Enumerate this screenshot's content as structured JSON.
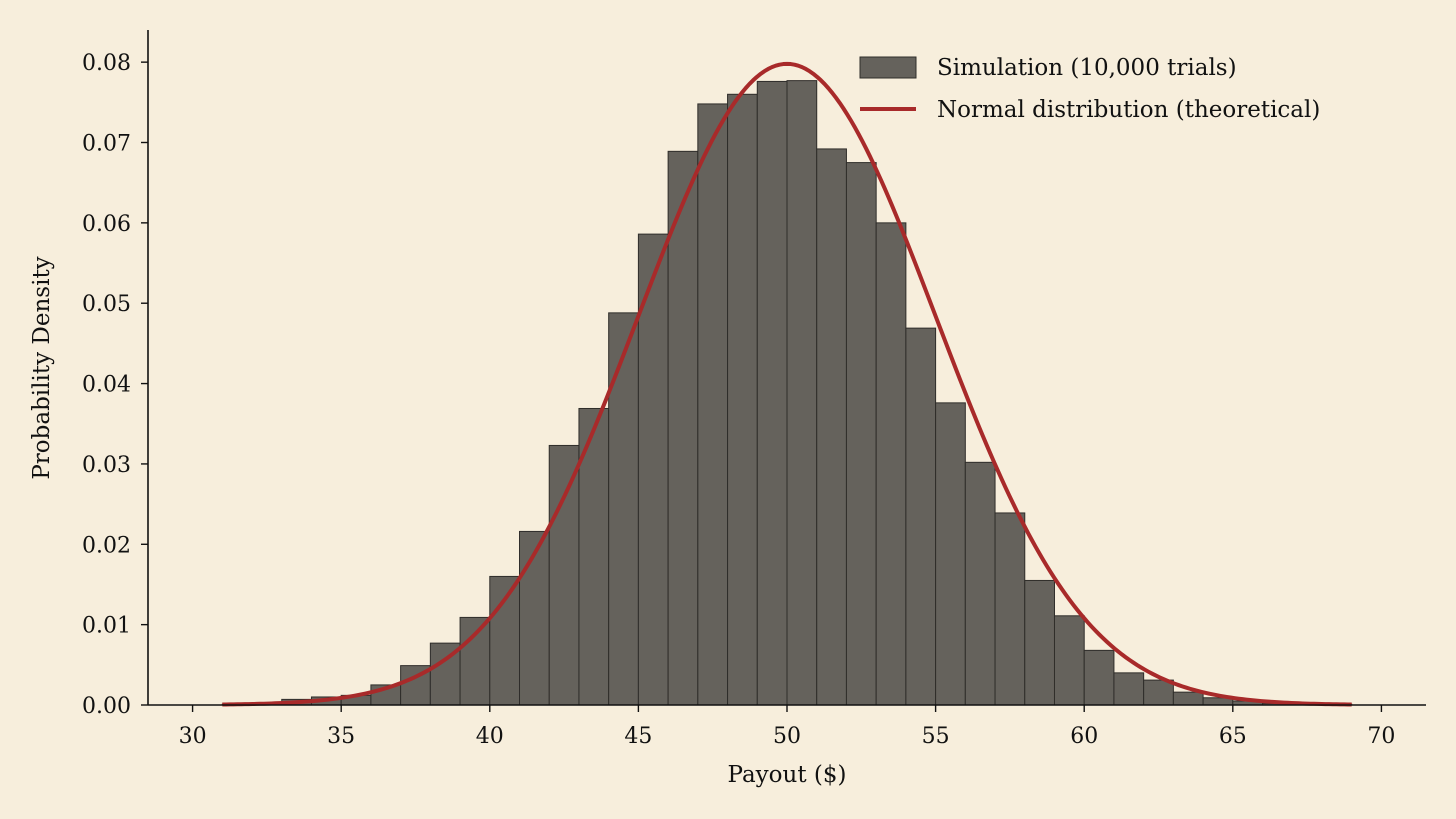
{
  "chart_data": {
    "type": "bar",
    "title": "",
    "xlabel": "Payout ($)",
    "ylabel": "Probability Density",
    "xlim": [
      28.5,
      71.5
    ],
    "ylim": [
      0,
      0.084
    ],
    "x_ticks": [
      30,
      35,
      40,
      45,
      50,
      55,
      60,
      65,
      70
    ],
    "y_ticks": [
      0.0,
      0.01,
      0.02,
      0.03,
      0.04,
      0.05,
      0.06,
      0.07,
      0.08
    ],
    "grid": false,
    "legend_position": "top-right",
    "colors": {
      "bars": "#65625c",
      "bar_edge": "#2f2d2a",
      "curve": "#a82a2a",
      "background": "#f7eedc"
    },
    "series": [
      {
        "name": "Simulation (10,000 trials)",
        "kind": "histogram",
        "bin_width": 1,
        "bin_edges_start": 31,
        "values": [
          0.0001,
          0.0002,
          0.0007,
          0.001,
          0.0012,
          0.0025,
          0.0049,
          0.0077,
          0.0109,
          0.016,
          0.0216,
          0.0323,
          0.0369,
          0.0488,
          0.0586,
          0.0689,
          0.0748,
          0.076,
          0.0776,
          0.0777,
          0.0692,
          0.0675,
          0.06,
          0.0469,
          0.0376,
          0.0302,
          0.0239,
          0.0155,
          0.0111,
          0.0068,
          0.004,
          0.0031,
          0.0016,
          0.0009,
          0.0005,
          0.0002,
          0.0001,
          0.0001
        ]
      },
      {
        "name": "Normal distribution (theoretical)",
        "kind": "line",
        "mean": 50,
        "std": 5,
        "x_range": [
          31,
          69
        ]
      }
    ]
  }
}
